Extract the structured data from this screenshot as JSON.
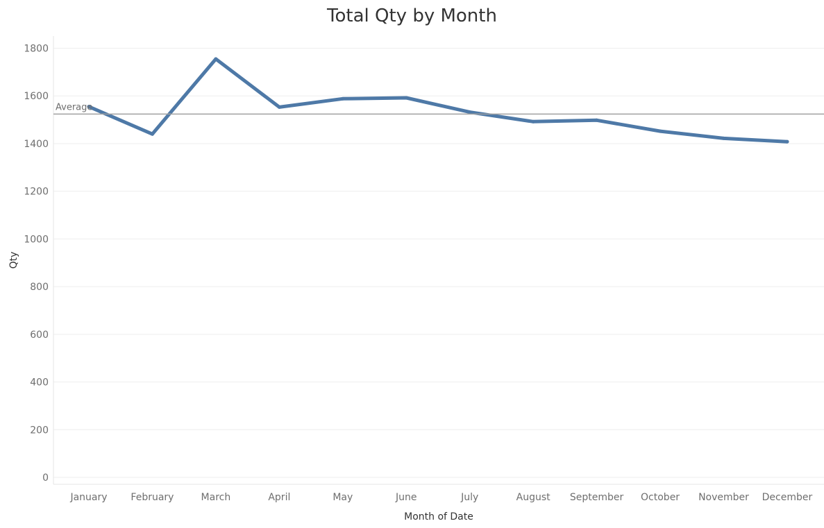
{
  "chart_data": {
    "type": "line",
    "title": "Total Qty by Month",
    "xlabel": "Month of Date",
    "ylabel": "Qty",
    "ylim": [
      0,
      1800
    ],
    "yticks": [
      0,
      200,
      400,
      600,
      800,
      1000,
      1200,
      1400,
      1600,
      1800
    ],
    "categories": [
      "January",
      "February",
      "March",
      "April",
      "May",
      "June",
      "July",
      "August",
      "September",
      "October",
      "November",
      "December"
    ],
    "series": [
      {
        "values": [
          1555,
          1440,
          1755,
          1553,
          1588,
          1592,
          1532,
          1492,
          1498,
          1452,
          1422,
          1408
        ]
      }
    ],
    "reference_line": {
      "label": "Average",
      "value": 1524
    },
    "grid": true,
    "colors": {
      "line": "#4e79a7",
      "reference": "#a0a0a0",
      "grid": "#eeeeee"
    }
  }
}
